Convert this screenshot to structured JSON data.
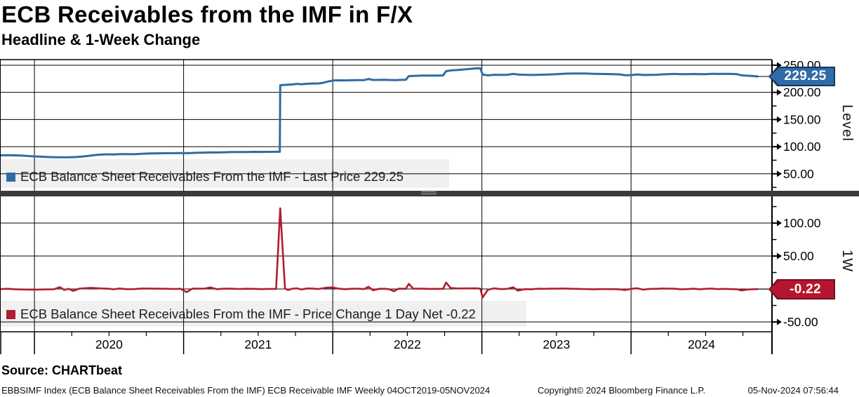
{
  "header": {
    "title": "ECB Receivables from the IMF in F/X",
    "subtitle": "Headline & 1-Week Change"
  },
  "colors": {
    "blue_line": "#2E6DA4",
    "red_line": "#B01C30",
    "tag_blue_fill": "#2E6CA8",
    "tag_blue_border": "#16365C",
    "tag_red_fill": "#B5162E",
    "tag_red_border": "#70101F",
    "legend_bg": "#F0F0F0",
    "separator": "#3B3B3B",
    "grid": "#000000"
  },
  "top_panel": {
    "legend": "ECB Balance Sheet Receivables From the IMF - Last Price 229.25",
    "tag": "229.25",
    "axis_title": "Level"
  },
  "bottom_panel": {
    "legend": "ECB Balance Sheet Receivables From the IMF - Price Change 1 Day Net -0.22",
    "tag": "-0.22",
    "axis_title": "1W"
  },
  "footer": {
    "source": "Source: CHARTbeat",
    "description": "EBBSIMF Index (ECB Balance Sheet Receivables From the IMF) ECB Receivable IMF  Weekly 04OCT2019-05NOV2024",
    "copyright": "Copyright© 2024 Bloomberg Finance L.P.",
    "datetime": "05-Nov-2024 07:56:44"
  },
  "x_axis": {
    "range_start": 2019.769,
    "range_end": 2024.945,
    "years": [
      {
        "v": 2020,
        "label": "2020"
      },
      {
        "v": 2021,
        "label": "2021"
      },
      {
        "v": 2022,
        "label": "2022"
      },
      {
        "v": 2023,
        "label": "2023"
      },
      {
        "v": 2024,
        "label": "2024"
      }
    ]
  },
  "chart_data": [
    {
      "type": "line",
      "name": "ECB Balance Sheet Receivables From the IMF - Last Price",
      "ylabel": "Level",
      "last_value": 229.25,
      "color": "#2E6DA4",
      "ylim": [
        18.7,
        260.3
      ],
      "gridlines": [
        250,
        200,
        150,
        100,
        50
      ],
      "yticks": [
        {
          "v": 250,
          "label": "250.00"
        },
        {
          "v": 200,
          "label": "200.00"
        },
        {
          "v": 150,
          "label": "150.00"
        },
        {
          "v": 100,
          "label": "100.00"
        },
        {
          "v": 50,
          "label": "50.00"
        }
      ],
      "yminor": [
        225,
        175,
        125,
        75,
        25
      ],
      "points": [
        [
          2019.77,
          84
        ],
        [
          2019.82,
          84.3
        ],
        [
          2019.87,
          84
        ],
        [
          2019.92,
          83.4
        ],
        [
          2019.98,
          82.4
        ],
        [
          2020.03,
          81.6
        ],
        [
          2020.08,
          81
        ],
        [
          2020.13,
          80.6
        ],
        [
          2020.18,
          80.4
        ],
        [
          2020.23,
          80.5
        ],
        [
          2020.28,
          80.9
        ],
        [
          2020.33,
          82
        ],
        [
          2020.38,
          83.6
        ],
        [
          2020.42,
          84.8
        ],
        [
          2020.46,
          85.6
        ],
        [
          2020.5,
          85.9
        ],
        [
          2020.53,
          85.5
        ],
        [
          2020.57,
          86.3
        ],
        [
          2020.62,
          86.1
        ],
        [
          2020.67,
          86
        ],
        [
          2020.72,
          86.8
        ],
        [
          2020.77,
          87.4
        ],
        [
          2020.82,
          87.7
        ],
        [
          2020.88,
          88
        ],
        [
          2020.93,
          88
        ],
        [
          2020.98,
          88.2
        ],
        [
          2021.03,
          88
        ],
        [
          2021.08,
          88.6
        ],
        [
          2021.13,
          89
        ],
        [
          2021.18,
          89.4
        ],
        [
          2021.22,
          89.2
        ],
        [
          2021.27,
          89.6
        ],
        [
          2021.32,
          90
        ],
        [
          2021.37,
          90
        ],
        [
          2021.42,
          90.2
        ],
        [
          2021.47,
          90.4
        ],
        [
          2021.52,
          90.3
        ],
        [
          2021.57,
          90.4
        ],
        [
          2021.62,
          90.5
        ],
        [
          2021.645,
          90.5
        ],
        [
          2021.648,
          213
        ],
        [
          2021.67,
          213.6
        ],
        [
          2021.7,
          214.2
        ],
        [
          2021.73,
          214.6
        ],
        [
          2021.76,
          215.6
        ],
        [
          2021.79,
          214.9
        ],
        [
          2021.83,
          215.8
        ],
        [
          2021.87,
          216.4
        ],
        [
          2021.9,
          216.3
        ],
        [
          2021.93,
          217.3
        ],
        [
          2021.96,
          219.3
        ],
        [
          2022,
          221.8
        ],
        [
          2022.04,
          222.2
        ],
        [
          2022.08,
          222
        ],
        [
          2022.13,
          222.3
        ],
        [
          2022.17,
          222.6
        ],
        [
          2022.21,
          222.5
        ],
        [
          2022.24,
          224.6
        ],
        [
          2022.27,
          222.8
        ],
        [
          2022.31,
          223
        ],
        [
          2022.35,
          223.2
        ],
        [
          2022.38,
          222.8
        ],
        [
          2022.42,
          222.6
        ],
        [
          2022.46,
          223
        ],
        [
          2022.49,
          223.2
        ],
        [
          2022.51,
          230
        ],
        [
          2022.55,
          230.4
        ],
        [
          2022.6,
          230.8
        ],
        [
          2022.65,
          230.9
        ],
        [
          2022.7,
          231
        ],
        [
          2022.74,
          231.2
        ],
        [
          2022.76,
          239
        ],
        [
          2022.8,
          240.6
        ],
        [
          2022.84,
          241.3
        ],
        [
          2022.88,
          242.2
        ],
        [
          2022.92,
          243.2
        ],
        [
          2022.96,
          244.2
        ],
        [
          2022.99,
          244.5
        ],
        [
          2023.005,
          232.6
        ],
        [
          2023.04,
          231.4
        ],
        [
          2023.08,
          232.4
        ],
        [
          2023.13,
          232.2
        ],
        [
          2023.17,
          232.4
        ],
        [
          2023.21,
          234
        ],
        [
          2023.25,
          232.6
        ],
        [
          2023.29,
          232.4
        ],
        [
          2023.33,
          232
        ],
        [
          2023.38,
          232.4
        ],
        [
          2023.42,
          232.6
        ],
        [
          2023.46,
          233
        ],
        [
          2023.5,
          233.4
        ],
        [
          2023.54,
          234.2
        ],
        [
          2023.58,
          234.6
        ],
        [
          2023.63,
          234.8
        ],
        [
          2023.67,
          234.8
        ],
        [
          2023.71,
          234.6
        ],
        [
          2023.75,
          234.2
        ],
        [
          2023.79,
          234
        ],
        [
          2023.83,
          233.8
        ],
        [
          2023.88,
          233.6
        ],
        [
          2023.92,
          233.2
        ],
        [
          2023.96,
          231.6
        ],
        [
          2024,
          231.8
        ],
        [
          2024.04,
          233
        ],
        [
          2024.08,
          232
        ],
        [
          2024.13,
          232.2
        ],
        [
          2024.17,
          232.4
        ],
        [
          2024.21,
          233.2
        ],
        [
          2024.25,
          233.6
        ],
        [
          2024.29,
          234
        ],
        [
          2024.33,
          233.6
        ],
        [
          2024.38,
          233.4
        ],
        [
          2024.42,
          233.8
        ],
        [
          2024.46,
          233.4
        ],
        [
          2024.5,
          233.6
        ],
        [
          2024.54,
          234.2
        ],
        [
          2024.58,
          234
        ],
        [
          2024.63,
          234.2
        ],
        [
          2024.67,
          234
        ],
        [
          2024.71,
          233.6
        ],
        [
          2024.74,
          231.4
        ],
        [
          2024.78,
          230.6
        ],
        [
          2024.81,
          230.2
        ],
        [
          2024.846,
          229.25
        ]
      ]
    },
    {
      "type": "line",
      "name": "ECB Balance Sheet Receivables From the IMF - Price Change 1 Day Net",
      "ylabel": "1W",
      "last_value": -0.22,
      "color": "#B01C30",
      "ylim": [
        -64.9,
        139.4
      ],
      "gridlines": [
        100,
        50,
        0,
        -50
      ],
      "yticks": [
        {
          "v": 100,
          "label": "100.00"
        },
        {
          "v": 50,
          "label": "50.00"
        },
        {
          "v": -50,
          "label": "-50.00"
        }
      ],
      "yminor": [
        125,
        75,
        25,
        -25
      ],
      "points": [
        [
          2019.77,
          -0.2
        ],
        [
          2019.82,
          0.3
        ],
        [
          2019.87,
          -0.4
        ],
        [
          2019.92,
          -0.7
        ],
        [
          2019.98,
          -1
        ],
        [
          2020.03,
          -0.8
        ],
        [
          2020.08,
          -0.6
        ],
        [
          2020.13,
          -0.5
        ],
        [
          2020.17,
          2.8
        ],
        [
          2020.2,
          -1.5
        ],
        [
          2020.23,
          0.2
        ],
        [
          2020.26,
          -3
        ],
        [
          2020.3,
          0.5
        ],
        [
          2020.34,
          1.2
        ],
        [
          2020.38,
          1.7
        ],
        [
          2020.42,
          1.2
        ],
        [
          2020.46,
          0.8
        ],
        [
          2020.5,
          0.3
        ],
        [
          2020.53,
          -0.5
        ],
        [
          2020.57,
          0.8
        ],
        [
          2020.62,
          -0.3
        ],
        [
          2020.67,
          -0.2
        ],
        [
          2020.72,
          0.8
        ],
        [
          2020.77,
          0.6
        ],
        [
          2020.82,
          0.4
        ],
        [
          2020.88,
          0.3
        ],
        [
          2020.93,
          0
        ],
        [
          2020.98,
          0.3
        ],
        [
          2021.02,
          -4.8
        ],
        [
          2021.06,
          0.6
        ],
        [
          2021.1,
          0.4
        ],
        [
          2021.14,
          0.5
        ],
        [
          2021.18,
          2.4
        ],
        [
          2021.22,
          -0.3
        ],
        [
          2021.27,
          0.4
        ],
        [
          2021.32,
          0.4
        ],
        [
          2021.37,
          0
        ],
        [
          2021.42,
          0.3
        ],
        [
          2021.47,
          0.2
        ],
        [
          2021.52,
          -0.2
        ],
        [
          2021.57,
          0.1
        ],
        [
          2021.62,
          0.1
        ],
        [
          2021.648,
          122.5
        ],
        [
          2021.68,
          0.6
        ],
        [
          2021.7,
          -1.6
        ],
        [
          2021.73,
          0.5
        ],
        [
          2021.76,
          1
        ],
        [
          2021.79,
          -0.7
        ],
        [
          2021.83,
          0.9
        ],
        [
          2021.87,
          0.6
        ],
        [
          2021.9,
          -0.1
        ],
        [
          2021.93,
          1
        ],
        [
          2021.96,
          2
        ],
        [
          2022,
          2.4
        ],
        [
          2022.04,
          0.4
        ],
        [
          2022.08,
          -0.3
        ],
        [
          2022.13,
          0.3
        ],
        [
          2022.17,
          0.4
        ],
        [
          2022.21,
          -0.2
        ],
        [
          2022.24,
          3.4
        ],
        [
          2022.27,
          -1.9
        ],
        [
          2022.31,
          0.2
        ],
        [
          2022.35,
          0.3
        ],
        [
          2022.38,
          -0.4
        ],
        [
          2022.41,
          -3.4
        ],
        [
          2022.44,
          0.4
        ],
        [
          2022.49,
          0.3
        ],
        [
          2022.51,
          7.9
        ],
        [
          2022.54,
          0.4
        ],
        [
          2022.6,
          0.4
        ],
        [
          2022.65,
          0.1
        ],
        [
          2022.7,
          0.2
        ],
        [
          2022.74,
          0.2
        ],
        [
          2022.76,
          9.8
        ],
        [
          2022.79,
          1.6
        ],
        [
          2022.84,
          0.7
        ],
        [
          2022.88,
          0.9
        ],
        [
          2022.92,
          1
        ],
        [
          2022.96,
          1
        ],
        [
          2022.99,
          0.4
        ],
        [
          2023.005,
          -12.9
        ],
        [
          2023.04,
          -1.2
        ],
        [
          2023.08,
          1
        ],
        [
          2023.13,
          -0.2
        ],
        [
          2023.17,
          0.2
        ],
        [
          2023.21,
          2.6
        ],
        [
          2023.24,
          -2.4
        ],
        [
          2023.29,
          -0.2
        ],
        [
          2023.33,
          -0.4
        ],
        [
          2023.38,
          0.4
        ],
        [
          2023.42,
          0.2
        ],
        [
          2023.46,
          0.4
        ],
        [
          2023.5,
          0.4
        ],
        [
          2023.54,
          0.8
        ],
        [
          2023.58,
          0.4
        ],
        [
          2023.63,
          0.2
        ],
        [
          2023.67,
          0
        ],
        [
          2023.71,
          -0.2
        ],
        [
          2023.75,
          -0.4
        ],
        [
          2023.79,
          -0.2
        ],
        [
          2023.83,
          -0.2
        ],
        [
          2023.88,
          -0.2
        ],
        [
          2023.92,
          -0.4
        ],
        [
          2023.96,
          -1.6
        ],
        [
          2024,
          0.2
        ],
        [
          2024.04,
          1.2
        ],
        [
          2024.08,
          -1
        ],
        [
          2024.13,
          0.2
        ],
        [
          2024.17,
          0.2
        ],
        [
          2024.21,
          0.8
        ],
        [
          2024.25,
          0.4
        ],
        [
          2024.29,
          0.4
        ],
        [
          2024.33,
          -0.4
        ],
        [
          2024.38,
          -0.2
        ],
        [
          2024.42,
          0.4
        ],
        [
          2024.46,
          -0.4
        ],
        [
          2024.5,
          0.2
        ],
        [
          2024.54,
          0.6
        ],
        [
          2024.58,
          -0.2
        ],
        [
          2024.63,
          0.2
        ],
        [
          2024.67,
          -0.2
        ],
        [
          2024.71,
          -0.4
        ],
        [
          2024.74,
          -2.2
        ],
        [
          2024.78,
          -0.8
        ],
        [
          2024.81,
          -0.4
        ],
        [
          2024.846,
          -0.22
        ]
      ]
    }
  ]
}
